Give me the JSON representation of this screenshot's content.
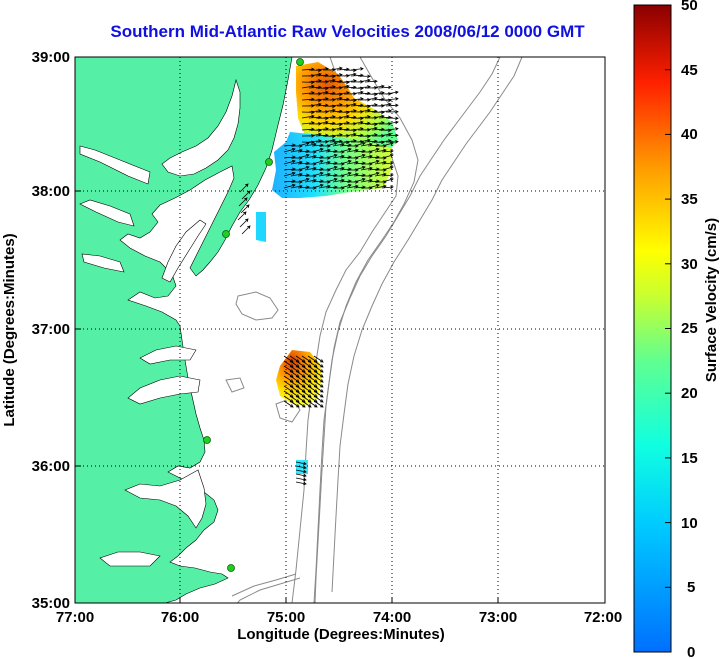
{
  "title": "Southern Mid-Atlantic Raw Velocities 2008/06/12 0000 GMT",
  "xlabel": "Longitude (Degrees:Minutes)",
  "ylabel": "Latitude (Degrees:Minutes)",
  "x_ticks": [
    "77:00",
    "76:00",
    "75:00",
    "74:00",
    "73:00",
    "72:00"
  ],
  "y_ticks": [
    "39:00",
    "38:00",
    "37:00",
    "36:00",
    "35:00"
  ],
  "colorbar": {
    "label": "Surface Velocity (cm/s)",
    "ticks": [
      "50",
      "45",
      "40",
      "35",
      "30",
      "25",
      "20",
      "15",
      "10",
      "5",
      "0"
    ]
  },
  "colors": {
    "title": "#1010e0",
    "land": "#55f0a5",
    "bathymetry": "#8a8a8a",
    "station": "#22cc22"
  }
}
